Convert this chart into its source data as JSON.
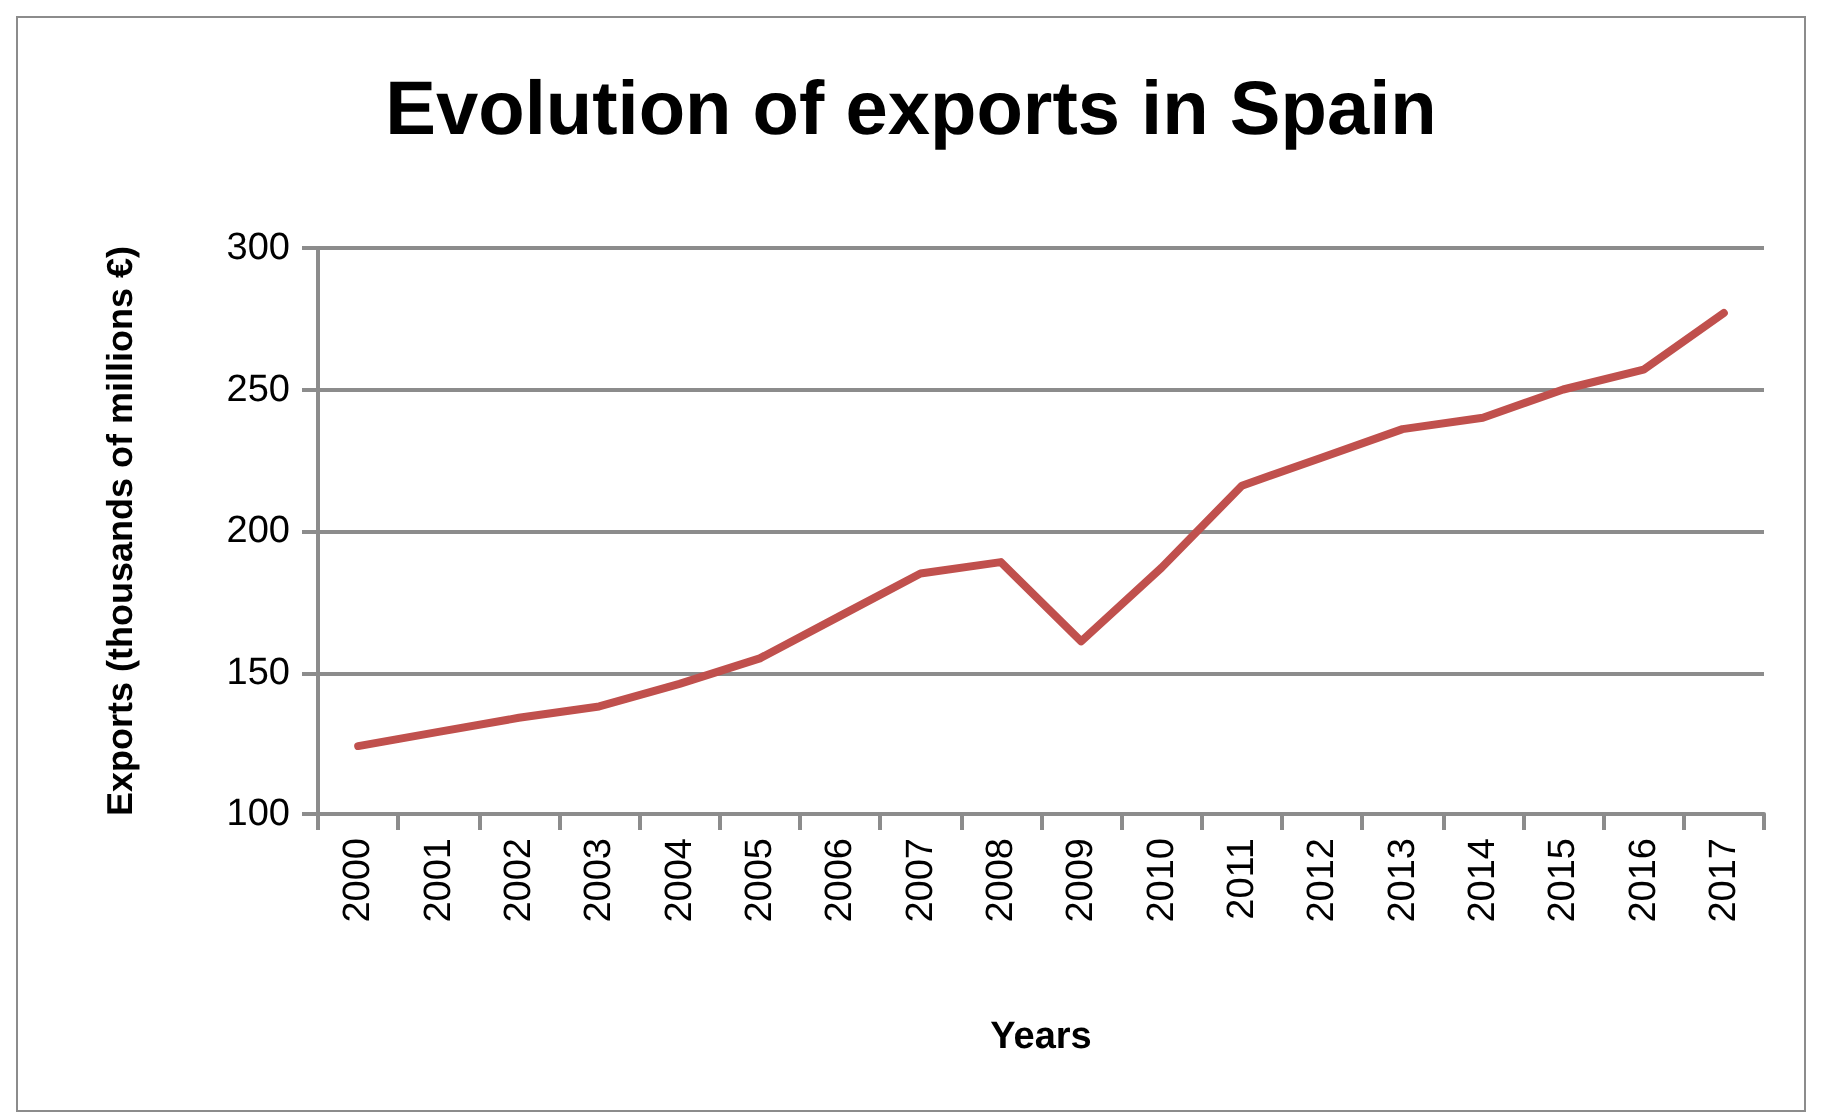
{
  "chart_data": {
    "type": "line",
    "title": "Evolution of exports in Spain",
    "xlabel": "Years",
    "ylabel": "Exports (thousands of millions €)",
    "categories": [
      "2000",
      "2001",
      "2002",
      "2003",
      "2004",
      "2005",
      "2006",
      "2007",
      "2008",
      "2009",
      "2010",
      "2011",
      "2012",
      "2013",
      "2014",
      "2015",
      "2016",
      "2017"
    ],
    "series": [
      {
        "color": "#c0504d",
        "values": [
          124,
          129,
          134,
          138,
          146,
          155,
          170,
          185,
          189,
          161,
          187,
          216,
          226,
          236,
          240,
          250,
          257,
          277
        ]
      }
    ],
    "ylim": [
      100,
      300
    ],
    "yticks": [
      100,
      150,
      200,
      250,
      300
    ],
    "grid": "y",
    "marker": "none",
    "line_style": "solid"
  }
}
